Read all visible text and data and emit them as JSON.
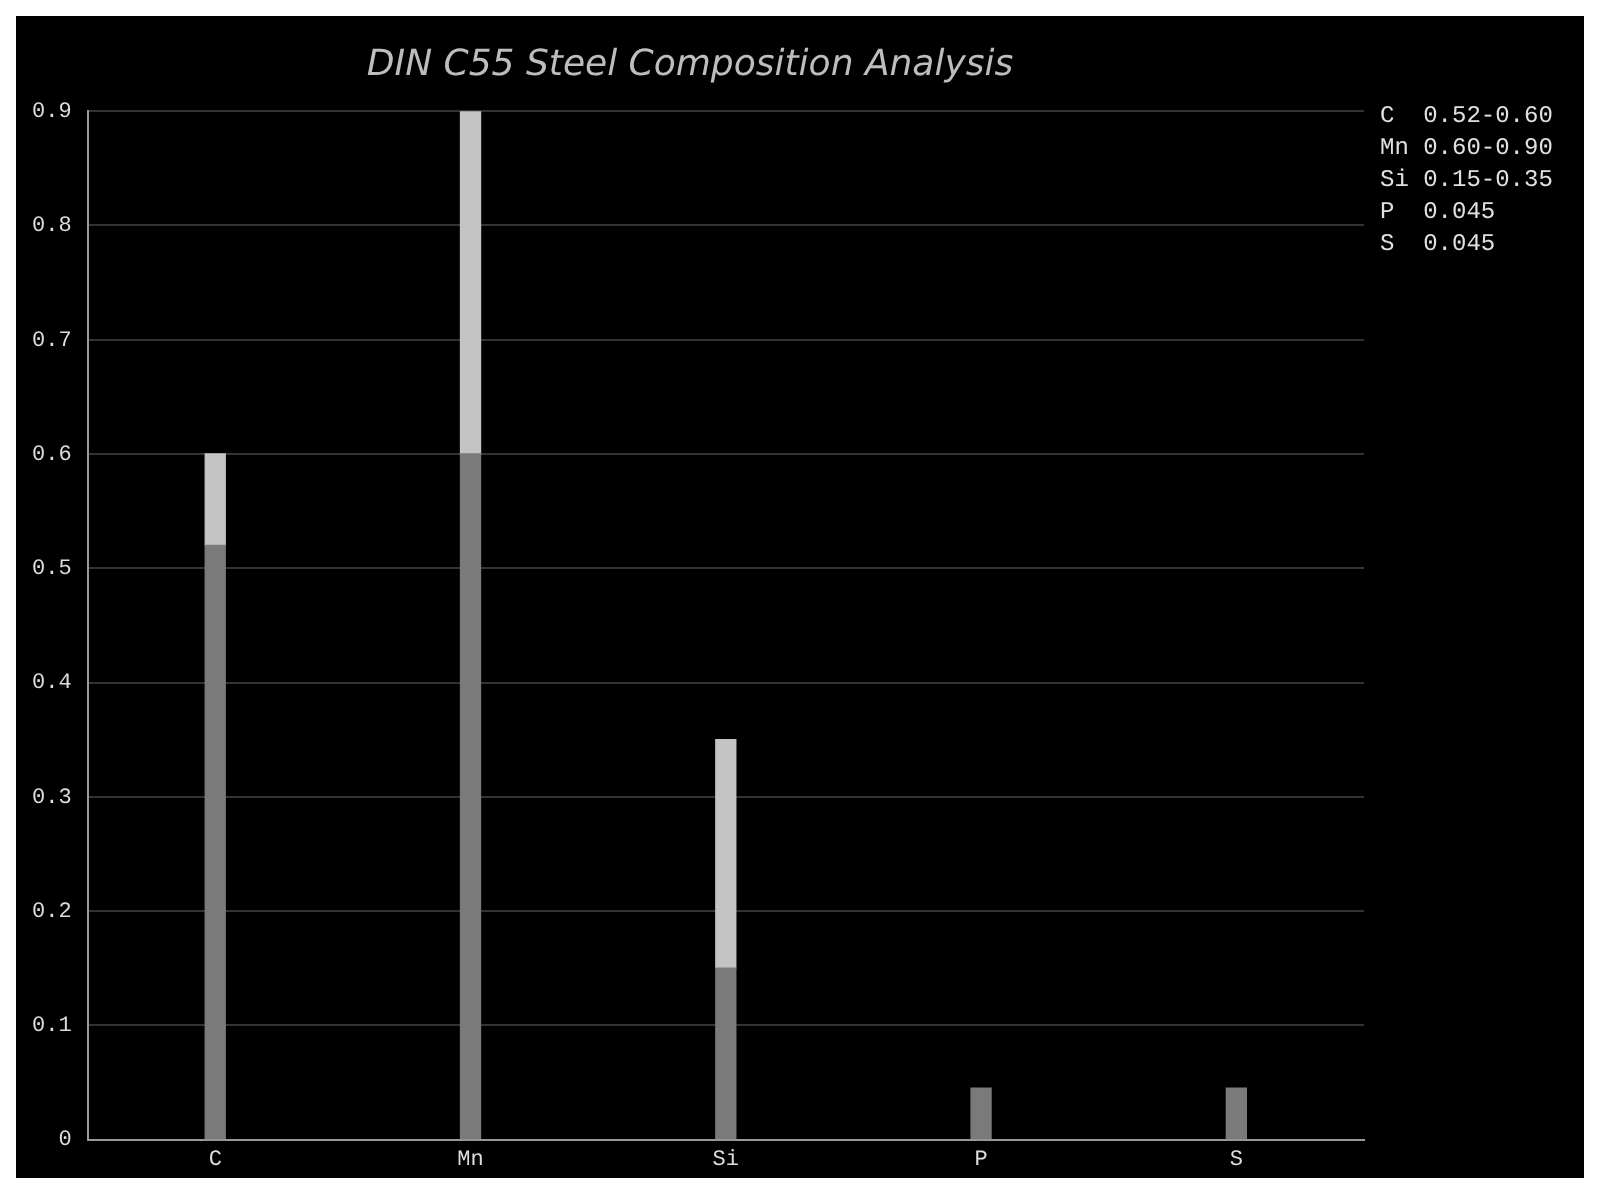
{
  "chart_data": {
    "type": "bar",
    "title": "DIN C55 Steel Composition Analysis",
    "categories": [
      "C",
      "Mn",
      "Si",
      "P",
      "S"
    ],
    "stacked": true,
    "series": [
      {
        "color": "#7a7a7a",
        "values": [
          0.52,
          0.6,
          0.15,
          0.045,
          0.045
        ]
      },
      {
        "color": "#c4c4c4",
        "values": [
          0.08,
          0.3,
          0.2,
          null,
          null
        ]
      }
    ],
    "ylim": [
      0,
      0.9
    ],
    "yticks": [
      0,
      0.1,
      0.2,
      0.3,
      0.4,
      0.5,
      0.6,
      0.7,
      0.8,
      0.9
    ],
    "grid": "y",
    "legend": false,
    "annotations": [
      "C  0.52-0.60",
      "Mn 0.60-0.90",
      "Si 0.15-0.35",
      "P  0.045",
      "S  0.045"
    ]
  }
}
